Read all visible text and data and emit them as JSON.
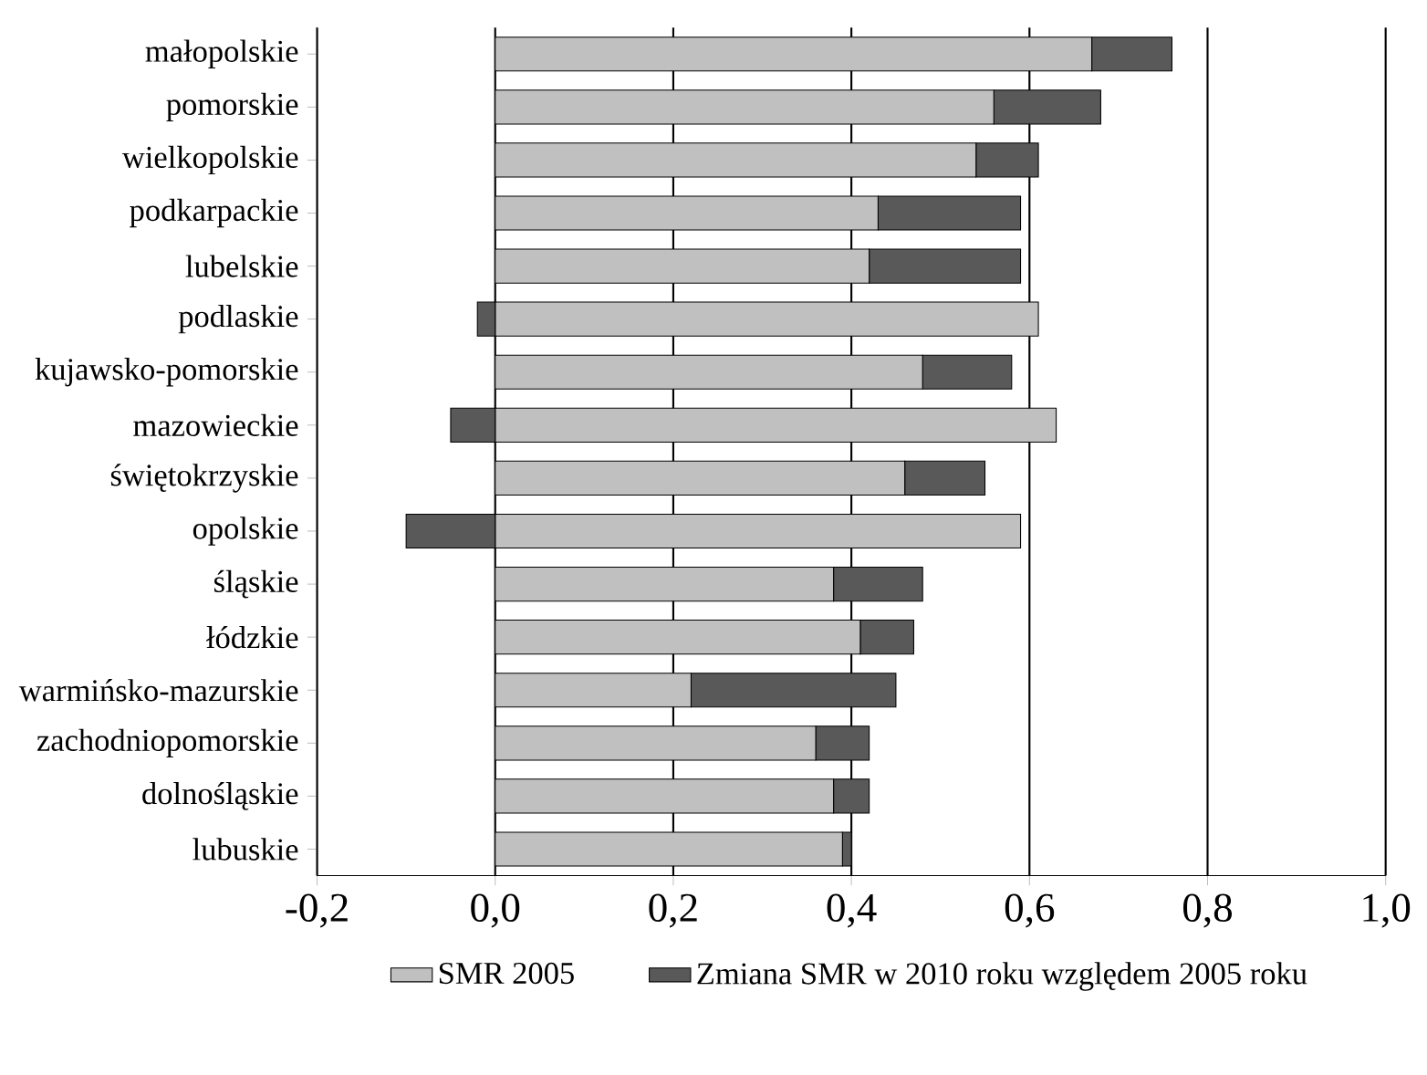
{
  "chart_data": {
    "type": "bar",
    "orientation": "horizontal",
    "stacked": true,
    "categories": [
      "małopolskie",
      "pomorskie",
      "wielkopolskie",
      "podkarpackie",
      "lubelskie",
      "podlaskie",
      "kujawsko-pomorskie",
      "mazowieckie",
      "świętokrzyskie",
      "opolskie",
      "śląskie",
      "łódzkie",
      "warmińsko-mazurskie",
      "zachodniopomorskie",
      "dolnośląskie",
      "lubuskie"
    ],
    "series": [
      {
        "name": "SMR 2005",
        "color": "#c0c0c0",
        "values": [
          0.67,
          0.56,
          0.54,
          0.43,
          0.42,
          0.61,
          0.48,
          0.63,
          0.46,
          0.59,
          0.38,
          0.41,
          0.22,
          0.36,
          0.38,
          0.39
        ]
      },
      {
        "name": "Zmiana SMR w 2010 roku względem 2005 roku",
        "color": "#595959",
        "values": [
          0.09,
          0.12,
          0.07,
          0.16,
          0.17,
          -0.02,
          0.1,
          -0.05,
          0.09,
          -0.1,
          0.1,
          0.06,
          0.23,
          0.06,
          0.04,
          0.01
        ]
      }
    ],
    "xlim": [
      -0.2,
      1.0
    ],
    "xticks": [
      {
        "value": -0.2,
        "label": "-0,2"
      },
      {
        "value": 0.0,
        "label": "0,0"
      },
      {
        "value": 0.2,
        "label": "0,2"
      },
      {
        "value": 0.4,
        "label": "0,4"
      },
      {
        "value": 0.6,
        "label": "0,6"
      },
      {
        "value": 0.8,
        "label": "0,8"
      },
      {
        "value": 1.0,
        "label": "1,0"
      }
    ],
    "grid": "x",
    "legend": "bottom"
  }
}
